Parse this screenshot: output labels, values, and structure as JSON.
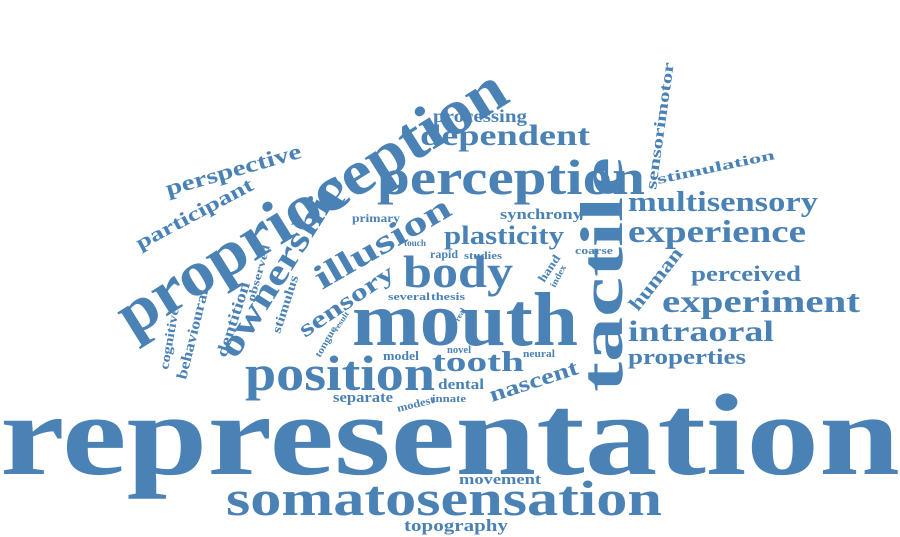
{
  "colors": {
    "word": "#4a82b5",
    "background": "#ffffff"
  },
  "words": {
    "representation": "representation",
    "somatosensation": "somatosensation",
    "topography": "topography",
    "movement": "movement",
    "mouth": "mouth",
    "tactile": "tactile",
    "proprioception": "proprioception",
    "perception": "perception",
    "position": "position",
    "ownership": "ownership",
    "illusion": "illusion",
    "body": "body",
    "experiment": "experiment",
    "experience": "experience",
    "multisensory": "multisensory",
    "intraoral": "intraoral",
    "properties": "properties",
    "perceived": "perceived",
    "human": "human",
    "dependent": "dependent",
    "processing": "processing",
    "plasticity": "plasticity",
    "synchrony": "synchrony",
    "sensory": "sensory",
    "tooth": "tooth",
    "nascent": "nascent",
    "dental": "dental",
    "separate": "separate",
    "modest": "modest",
    "innate": "innate",
    "model": "model",
    "novel": "novel",
    "neural": "neural",
    "several": "several",
    "thesis": "thesis",
    "perspective": "perspective",
    "participant": "participant",
    "sensorimotor": "sensorimotor",
    "stimulation": "stimulation",
    "primary": "primary",
    "touch": "touch",
    "rapid": "rapid",
    "studies": "studies",
    "coarse": "coarse",
    "hand": "hand",
    "index": "index",
    "tongue": "tongue",
    "result": "result",
    "real": "real",
    "stimulus": "stimulus",
    "dentition": "dentition",
    "behavioural": "behavioural",
    "cognitive": "cognitive",
    "observed": "observed"
  }
}
